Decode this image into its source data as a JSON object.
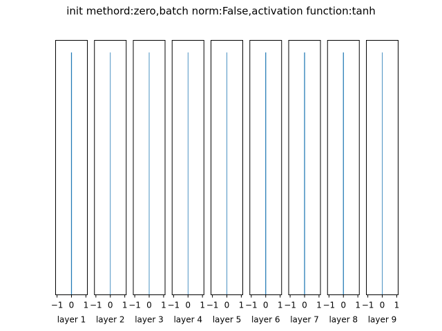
{
  "chart_data": {
    "type": "histogram",
    "title": "init methord:zero,batch norm:False,activation function:tanh",
    "colors": {
      "bar": "#1f77b4",
      "axes": "#000000",
      "background": "#ffffff"
    },
    "xlim": [
      -1.1,
      1.1
    ],
    "xticks": [
      -1,
      0,
      1
    ],
    "xtick_labels": [
      "−1",
      "0",
      "1"
    ],
    "ylim": [
      0,
      1.05
    ],
    "grid": false,
    "panels": [
      {
        "xlabel": "layer 1",
        "bars": [
          {
            "x": 0,
            "width": 0.06,
            "value": 1.0
          }
        ]
      },
      {
        "xlabel": "layer 2",
        "bars": [
          {
            "x": 0,
            "width": 0.02,
            "value": 1.0
          }
        ]
      },
      {
        "xlabel": "layer 3",
        "bars": [
          {
            "x": 0,
            "width": 0.02,
            "value": 1.0
          }
        ]
      },
      {
        "xlabel": "layer 4",
        "bars": [
          {
            "x": 0,
            "width": 0.02,
            "value": 1.0
          }
        ]
      },
      {
        "xlabel": "layer 5",
        "bars": [
          {
            "x": 0,
            "width": 0.02,
            "value": 1.0
          }
        ]
      },
      {
        "xlabel": "layer 6",
        "bars": [
          {
            "x": 0,
            "width": 0.06,
            "value": 1.0
          }
        ]
      },
      {
        "xlabel": "layer 7",
        "bars": [
          {
            "x": 0,
            "width": 0.06,
            "value": 1.0
          }
        ]
      },
      {
        "xlabel": "layer 8",
        "bars": [
          {
            "x": 0,
            "width": 0.06,
            "value": 1.0
          }
        ]
      },
      {
        "xlabel": "layer 9",
        "bars": [
          {
            "x": 0,
            "width": 0.02,
            "value": 1.0
          }
        ]
      }
    ]
  }
}
